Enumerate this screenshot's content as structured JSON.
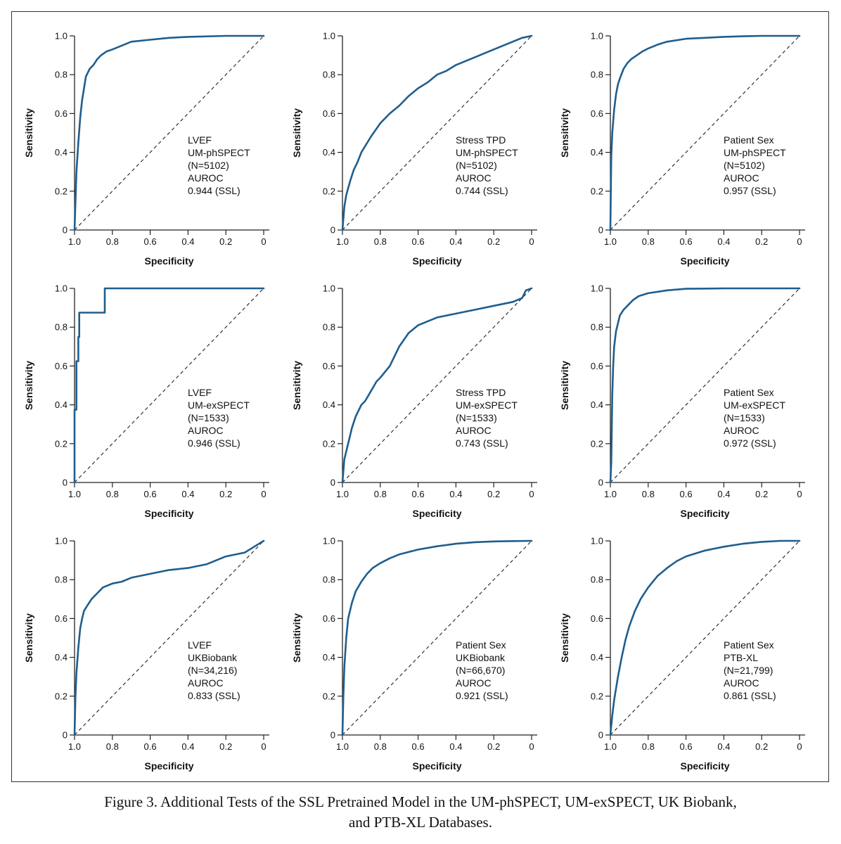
{
  "caption": {
    "line1": "Figure 3.  Additional Tests of the SSL Pretrained Model in the UM-phSPECT, UM-exSPECT, UK Biobank,",
    "line2": "and PTB-XL Databases."
  },
  "colors": {
    "roc_line": "#1f5e8e",
    "axis": "#222222",
    "reference": "#222222"
  },
  "chart_data": [
    {
      "type": "line",
      "xlabel": "Specificity",
      "ylabel": "Sensitivity",
      "xlim": [
        1.0,
        0
      ],
      "ylim": [
        0,
        1.0
      ],
      "x_ticks": [
        "1.0",
        "0.8",
        "0.6",
        "0.4",
        "0.2",
        "0"
      ],
      "y_ticks": [
        "0",
        "0.2",
        "0.4",
        "0.6",
        "0.8",
        "1.0"
      ],
      "annotation": [
        "LVEF",
        "UM-phSPECT",
        "(N=5102)",
        "AUROC",
        "0.944 (SSL)"
      ],
      "series": [
        {
          "specificity": [
            1.0,
            0.99,
            0.98,
            0.97,
            0.96,
            0.95,
            0.94,
            0.92,
            0.9,
            0.88,
            0.86,
            0.83,
            0.8,
            0.75,
            0.7,
            0.6,
            0.5,
            0.4,
            0.2,
            0.0
          ],
          "sensitivity": [
            0.0,
            0.3,
            0.45,
            0.58,
            0.67,
            0.73,
            0.79,
            0.83,
            0.85,
            0.88,
            0.9,
            0.92,
            0.93,
            0.95,
            0.97,
            0.98,
            0.99,
            0.995,
            1.0,
            1.0
          ]
        }
      ]
    },
    {
      "type": "line",
      "xlabel": "Specificity",
      "ylabel": "Sensitivity",
      "xlim": [
        1.0,
        0
      ],
      "ylim": [
        0,
        1.0
      ],
      "x_ticks": [
        "1.0",
        "0.8",
        "0.6",
        "0.4",
        "0.2",
        "0"
      ],
      "y_ticks": [
        "0",
        "0.2",
        "0.4",
        "0.6",
        "0.8",
        "1.0"
      ],
      "annotation": [
        "Stress TPD",
        "UM-phSPECT",
        "(N=5102)",
        "AUROC",
        "0.744 (SSL)"
      ],
      "series": [
        {
          "specificity": [
            1.0,
            0.99,
            0.98,
            0.96,
            0.94,
            0.92,
            0.9,
            0.85,
            0.8,
            0.75,
            0.7,
            0.65,
            0.6,
            0.55,
            0.5,
            0.45,
            0.4,
            0.35,
            0.3,
            0.25,
            0.2,
            0.15,
            0.1,
            0.05,
            0.0
          ],
          "sensitivity": [
            0.0,
            0.12,
            0.18,
            0.25,
            0.31,
            0.35,
            0.4,
            0.48,
            0.55,
            0.6,
            0.64,
            0.69,
            0.73,
            0.76,
            0.8,
            0.82,
            0.85,
            0.87,
            0.89,
            0.91,
            0.93,
            0.95,
            0.97,
            0.99,
            1.0
          ]
        }
      ]
    },
    {
      "type": "line",
      "xlabel": "Specificity",
      "ylabel": "Sensitivity",
      "xlim": [
        1.0,
        0
      ],
      "ylim": [
        0,
        1.0
      ],
      "x_ticks": [
        "1.0",
        "0.8",
        "0.6",
        "0.4",
        "0.2",
        "0"
      ],
      "y_ticks": [
        "0",
        "0.2",
        "0.4",
        "0.6",
        "0.8",
        "1.0"
      ],
      "annotation": [
        "Patient Sex",
        "UM-phSPECT",
        "(N=5102)",
        "AUROC",
        "0.957 (SSL)"
      ],
      "series": [
        {
          "specificity": [
            1.0,
            0.995,
            0.99,
            0.98,
            0.97,
            0.96,
            0.95,
            0.93,
            0.91,
            0.89,
            0.86,
            0.83,
            0.8,
            0.75,
            0.7,
            0.6,
            0.5,
            0.4,
            0.3,
            0.2,
            0.0
          ],
          "sensitivity": [
            0.0,
            0.38,
            0.5,
            0.62,
            0.7,
            0.75,
            0.78,
            0.83,
            0.86,
            0.88,
            0.9,
            0.92,
            0.935,
            0.955,
            0.97,
            0.985,
            0.99,
            0.995,
            0.998,
            1.0,
            1.0
          ]
        }
      ]
    },
    {
      "type": "line",
      "xlabel": "Specificity",
      "ylabel": "Sensitivity",
      "xlim": [
        1.0,
        0
      ],
      "ylim": [
        0,
        1.0
      ],
      "x_ticks": [
        "1.0",
        "0.8",
        "0.6",
        "0.4",
        "0.2",
        "0"
      ],
      "y_ticks": [
        "0",
        "0.2",
        "0.4",
        "0.6",
        "0.8",
        "1.0"
      ],
      "annotation": [
        "LVEF",
        "UM-exSPECT",
        "(N=1533)",
        "AUROC",
        "0.946 (SSL)"
      ],
      "series": [
        {
          "specificity": [
            1.0,
            1.0,
            0.99,
            0.99,
            0.98,
            0.98,
            0.975,
            0.975,
            0.84,
            0.84,
            0.0
          ],
          "sensitivity": [
            0.0,
            0.375,
            0.375,
            0.625,
            0.625,
            0.75,
            0.75,
            0.875,
            0.875,
            1.0,
            1.0
          ]
        }
      ]
    },
    {
      "type": "line",
      "xlabel": "Specificity",
      "ylabel": "Sensitivity",
      "xlim": [
        1.0,
        0
      ],
      "ylim": [
        0,
        1.0
      ],
      "x_ticks": [
        "1.0",
        "0.8",
        "0.6",
        "0.4",
        "0.2",
        "0"
      ],
      "y_ticks": [
        "0",
        "0.2",
        "0.4",
        "0.6",
        "0.8",
        "1.0"
      ],
      "annotation": [
        "Stress TPD",
        "UM-exSPECT",
        "(N=1533)",
        "AUROC",
        "0.743 (SSL)"
      ],
      "series": [
        {
          "specificity": [
            1.0,
            0.99,
            0.97,
            0.95,
            0.93,
            0.9,
            0.88,
            0.85,
            0.82,
            0.8,
            0.75,
            0.7,
            0.65,
            0.6,
            0.55,
            0.5,
            0.45,
            0.4,
            0.3,
            0.2,
            0.1,
            0.05,
            0.03,
            0.0
          ],
          "sensitivity": [
            0.0,
            0.12,
            0.2,
            0.28,
            0.34,
            0.4,
            0.42,
            0.47,
            0.52,
            0.54,
            0.6,
            0.7,
            0.77,
            0.81,
            0.83,
            0.85,
            0.86,
            0.87,
            0.89,
            0.91,
            0.93,
            0.95,
            0.99,
            1.0
          ]
        }
      ]
    },
    {
      "type": "line",
      "xlabel": "Specificity",
      "ylabel": "Sensitivity",
      "xlim": [
        1.0,
        0
      ],
      "ylim": [
        0,
        1.0
      ],
      "x_ticks": [
        "1.0",
        "0.8",
        "0.6",
        "0.4",
        "0.2",
        "0"
      ],
      "y_ticks": [
        "0",
        "0.2",
        "0.4",
        "0.6",
        "0.8",
        "1.0"
      ],
      "annotation": [
        "Patient Sex",
        "UM-exSPECT",
        "(N=1533)",
        "AUROC",
        "0.972 (SSL)"
      ],
      "series": [
        {
          "specificity": [
            1.0,
            0.995,
            0.99,
            0.985,
            0.98,
            0.97,
            0.96,
            0.95,
            0.93,
            0.91,
            0.88,
            0.85,
            0.8,
            0.7,
            0.6,
            0.4,
            0.2,
            0.0
          ],
          "sensitivity": [
            0.0,
            0.1,
            0.45,
            0.6,
            0.7,
            0.78,
            0.82,
            0.86,
            0.89,
            0.91,
            0.94,
            0.96,
            0.975,
            0.99,
            0.998,
            1.0,
            1.0,
            1.0
          ]
        }
      ]
    },
    {
      "type": "line",
      "xlabel": "Specificity",
      "ylabel": "Sensitivity",
      "xlim": [
        1.0,
        0
      ],
      "ylim": [
        0,
        1.0
      ],
      "x_ticks": [
        "1.0",
        "0.8",
        "0.6",
        "0.4",
        "0.2",
        "0"
      ],
      "y_ticks": [
        "0",
        "0.2",
        "0.4",
        "0.6",
        "0.8",
        "1.0"
      ],
      "annotation": [
        "LVEF",
        "UKBiobank",
        "(N=34,216)",
        "AUROC",
        "0.833 (SSL)"
      ],
      "series": [
        {
          "specificity": [
            1.0,
            0.995,
            0.99,
            0.98,
            0.97,
            0.96,
            0.95,
            0.93,
            0.91,
            0.88,
            0.85,
            0.8,
            0.75,
            0.7,
            0.6,
            0.5,
            0.4,
            0.3,
            0.2,
            0.1,
            0.05,
            0.0
          ],
          "sensitivity": [
            0.0,
            0.2,
            0.32,
            0.45,
            0.55,
            0.6,
            0.64,
            0.67,
            0.7,
            0.73,
            0.76,
            0.78,
            0.79,
            0.81,
            0.83,
            0.85,
            0.86,
            0.88,
            0.92,
            0.94,
            0.97,
            1.0
          ]
        }
      ]
    },
    {
      "type": "line",
      "xlabel": "Specificity",
      "ylabel": "Sensitivity",
      "xlim": [
        1.0,
        0
      ],
      "ylim": [
        0,
        1.0
      ],
      "x_ticks": [
        "1.0",
        "0.8",
        "0.6",
        "0.4",
        "0.2",
        "0"
      ],
      "y_ticks": [
        "0",
        "0.2",
        "0.4",
        "0.6",
        "0.8",
        "1.0"
      ],
      "annotation": [
        "Patient Sex",
        "UKBiobank",
        "(N=66,670)",
        "AUROC",
        "0.921 (SSL)"
      ],
      "series": [
        {
          "specificity": [
            1.0,
            0.995,
            0.99,
            0.98,
            0.97,
            0.95,
            0.93,
            0.9,
            0.87,
            0.84,
            0.8,
            0.75,
            0.7,
            0.6,
            0.5,
            0.4,
            0.3,
            0.2,
            0.1,
            0.0
          ],
          "sensitivity": [
            0.0,
            0.2,
            0.35,
            0.5,
            0.6,
            0.68,
            0.74,
            0.79,
            0.83,
            0.86,
            0.885,
            0.91,
            0.93,
            0.955,
            0.972,
            0.985,
            0.993,
            0.997,
            0.999,
            1.0
          ]
        }
      ]
    },
    {
      "type": "line",
      "xlabel": "Specificity",
      "ylabel": "Sensitivity",
      "xlim": [
        1.0,
        0
      ],
      "ylim": [
        0,
        1.0
      ],
      "x_ticks": [
        "1.0",
        "0.8",
        "0.6",
        "0.4",
        "0.2",
        "0"
      ],
      "y_ticks": [
        "0",
        "0.2",
        "0.4",
        "0.6",
        "0.8",
        "1.0"
      ],
      "annotation": [
        "Patient Sex",
        "PTB-XL",
        "(N=21,799)",
        "AUROC",
        "0.861 (SSL)"
      ],
      "series": [
        {
          "specificity": [
            1.0,
            0.99,
            0.98,
            0.96,
            0.94,
            0.92,
            0.9,
            0.87,
            0.84,
            0.8,
            0.75,
            0.7,
            0.65,
            0.6,
            0.5,
            0.4,
            0.3,
            0.2,
            0.1,
            0.0
          ],
          "sensitivity": [
            0.0,
            0.1,
            0.18,
            0.3,
            0.4,
            0.49,
            0.56,
            0.64,
            0.7,
            0.76,
            0.82,
            0.86,
            0.895,
            0.92,
            0.95,
            0.97,
            0.985,
            0.995,
            1.0,
            1.0
          ]
        }
      ]
    }
  ]
}
